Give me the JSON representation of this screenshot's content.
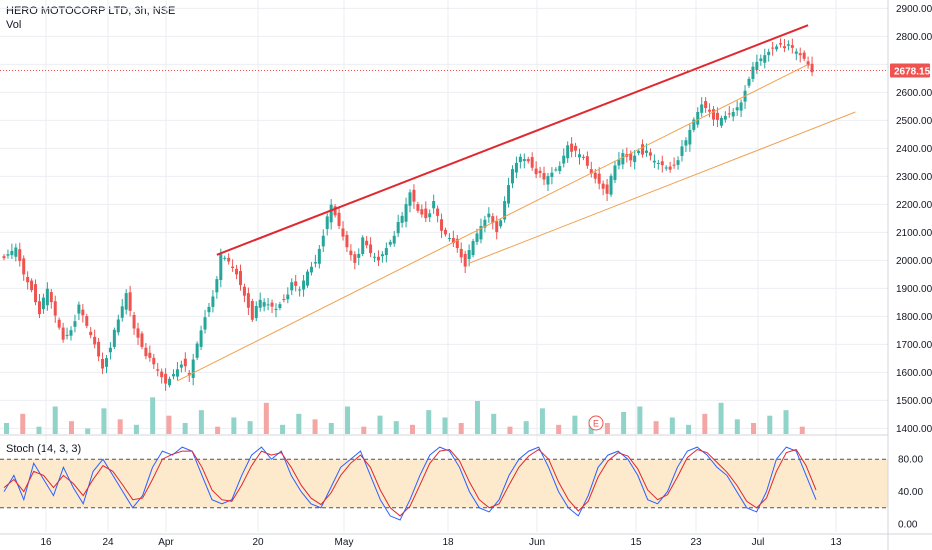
{
  "header": {
    "symbol_line": "HERO MOTOCORP LTD, 3h, NSE",
    "volume_label": "Vol",
    "stoch_label": "Stoch (14, 3, 3)"
  },
  "colors": {
    "up": "#26a69a",
    "down": "#ef5350",
    "vol_up": "#8fd3c9",
    "vol_down": "#f4a6a4",
    "channel_top": "#e0282f",
    "channel_lines": "#f0a050",
    "stoch_k": "#2962ff",
    "stoch_d": "#e0282f",
    "stoch_band": "#fde9cc",
    "price_tag": "#ef5350",
    "grid": "#eceef2"
  },
  "last_price": "2678.15",
  "earnings_marker": "E",
  "chart_data": [
    {
      "type": "candlestick",
      "title": "HERO MOTOCORP LTD, 3h, NSE",
      "y_axis_ticks": [
        "2900.00",
        "2800.00",
        "2700.00",
        "2600.00",
        "2500.00",
        "2400.00",
        "2300.00",
        "2200.00",
        "2100.00",
        "2000.00",
        "1900.00",
        "1800.00",
        "1700.00",
        "1600.00",
        "1500.00",
        "1400.00"
      ],
      "x_axis_ticks": [
        "16",
        "24",
        "Apr",
        "20",
        "May",
        "18",
        "Jun",
        "15",
        "23",
        "Jul",
        "13"
      ],
      "last_price": 2678.15,
      "price_range": [
        1380,
        2930
      ],
      "grid": true,
      "series": [
        {
          "name": "price",
          "close_path": [
            [
              0,
              2030
            ],
            [
              2,
              2010
            ],
            [
              4,
              2040
            ],
            [
              6,
              1950
            ],
            [
              8,
              1900
            ],
            [
              10,
              1820
            ],
            [
              12,
              1890
            ],
            [
              14,
              1800
            ],
            [
              16,
              1720
            ],
            [
              18,
              1760
            ],
            [
              20,
              1830
            ],
            [
              22,
              1760
            ],
            [
              24,
              1700
            ],
            [
              26,
              1620
            ],
            [
              28,
              1700
            ],
            [
              30,
              1780
            ],
            [
              32,
              1880
            ],
            [
              34,
              1760
            ],
            [
              36,
              1700
            ],
            [
              38,
              1640
            ],
            [
              40,
              1600
            ],
            [
              42,
              1560
            ],
            [
              44,
              1600
            ],
            [
              46,
              1640
            ],
            [
              48,
              1580
            ],
            [
              50,
              1700
            ],
            [
              52,
              1800
            ],
            [
              54,
              1880
            ],
            [
              56,
              2010
            ],
            [
              58,
              1990
            ],
            [
              60,
              1950
            ],
            [
              62,
              1880
            ],
            [
              64,
              1800
            ],
            [
              66,
              1850
            ],
            [
              68,
              1840
            ],
            [
              70,
              1830
            ],
            [
              72,
              1870
            ],
            [
              74,
              1910
            ],
            [
              76,
              1890
            ],
            [
              78,
              1960
            ],
            [
              80,
              2000
            ],
            [
              82,
              2100
            ],
            [
              84,
              2190
            ],
            [
              86,
              2120
            ],
            [
              88,
              2050
            ],
            [
              90,
              2000
            ],
            [
              92,
              2070
            ],
            [
              94,
              2020
            ],
            [
              96,
              2000
            ],
            [
              98,
              2050
            ],
            [
              100,
              2100
            ],
            [
              102,
              2150
            ],
            [
              104,
              2240
            ],
            [
              106,
              2180
            ],
            [
              108,
              2160
            ],
            [
              110,
              2200
            ],
            [
              112,
              2100
            ],
            [
              114,
              2080
            ],
            [
              116,
              2050
            ],
            [
              118,
              1990
            ],
            [
              120,
              2060
            ],
            [
              122,
              2120
            ],
            [
              124,
              2170
            ],
            [
              126,
              2110
            ],
            [
              128,
              2200
            ],
            [
              130,
              2320
            ],
            [
              132,
              2370
            ],
            [
              134,
              2360
            ],
            [
              136,
              2320
            ],
            [
              138,
              2280
            ],
            [
              140,
              2310
            ],
            [
              142,
              2340
            ],
            [
              144,
              2420
            ],
            [
              146,
              2380
            ],
            [
              148,
              2360
            ],
            [
              150,
              2310
            ],
            [
              152,
              2280
            ],
            [
              154,
              2250
            ],
            [
              156,
              2330
            ],
            [
              158,
              2380
            ],
            [
              160,
              2360
            ],
            [
              162,
              2400
            ],
            [
              164,
              2380
            ],
            [
              166,
              2350
            ],
            [
              168,
              2340
            ],
            [
              170,
              2330
            ],
            [
              172,
              2370
            ],
            [
              174,
              2420
            ],
            [
              176,
              2500
            ],
            [
              178,
              2560
            ],
            [
              180,
              2540
            ],
            [
              182,
              2490
            ],
            [
              184,
              2510
            ],
            [
              186,
              2530
            ],
            [
              188,
              2570
            ],
            [
              190,
              2660
            ],
            [
              192,
              2700
            ],
            [
              194,
              2730
            ],
            [
              196,
              2760
            ],
            [
              198,
              2780
            ],
            [
              200,
              2760
            ],
            [
              202,
              2740
            ],
            [
              204,
              2720
            ],
            [
              206,
              2678.15
            ]
          ]
        }
      ],
      "channel_lines": [
        {
          "name": "upper",
          "points": [
            [
              54,
              2020
            ],
            [
              204,
              2840
            ]
          ]
        },
        {
          "name": "middle",
          "points": [
            [
              44,
              1570
            ],
            [
              204,
              2700
            ]
          ]
        },
        {
          "name": "lower",
          "points": [
            [
              118,
              1990
            ],
            [
              216,
              2530
            ]
          ]
        }
      ]
    },
    {
      "type": "bar",
      "title": "Vol",
      "values": [
        12,
        22,
        8,
        30,
        14,
        6,
        28,
        16,
        10,
        40,
        20,
        12,
        26,
        8,
        18,
        14,
        34,
        10,
        22,
        16,
        12,
        30,
        8,
        20,
        14,
        10,
        26,
        18,
        12,
        36,
        22,
        8,
        14,
        28,
        10,
        20,
        16,
        12,
        24,
        30,
        14,
        18,
        10,
        22,
        34,
        16,
        12,
        20,
        26,
        8
      ],
      "ylim": [
        0,
        120
      ]
    },
    {
      "type": "line",
      "title": "Stoch (14, 3, 3)",
      "y_axis_ticks": [
        "80.00",
        "40.00",
        "0.00"
      ],
      "ylim": [
        0,
        100
      ],
      "bands": [
        20,
        80
      ],
      "series": [
        {
          "name": "%K",
          "values": [
            40,
            60,
            30,
            75,
            55,
            35,
            70,
            45,
            25,
            65,
            80,
            60,
            40,
            20,
            35,
            70,
            90,
            85,
            95,
            90,
            60,
            30,
            25,
            30,
            60,
            85,
            95,
            80,
            90,
            60,
            40,
            25,
            20,
            45,
            70,
            80,
            90,
            60,
            30,
            10,
            5,
            30,
            60,
            85,
            95,
            90,
            70,
            40,
            20,
            15,
            30,
            60,
            80,
            90,
            95,
            70,
            40,
            20,
            10,
            35,
            70,
            85,
            90,
            80,
            60,
            30,
            25,
            40,
            70,
            90,
            95,
            85,
            70,
            60,
            40,
            20,
            15,
            40,
            80,
            95,
            90,
            60,
            30
          ]
        },
        {
          "name": "%D",
          "values": [
            45,
            55,
            40,
            65,
            60,
            45,
            60,
            50,
            35,
            55,
            72,
            65,
            48,
            30,
            32,
            55,
            80,
            86,
            90,
            90,
            70,
            42,
            30,
            28,
            48,
            72,
            90,
            85,
            88,
            70,
            48,
            32,
            24,
            38,
            60,
            75,
            85,
            70,
            42,
            20,
            10,
            22,
            48,
            75,
            90,
            92,
            78,
            52,
            30,
            20,
            25,
            48,
            70,
            84,
            92,
            80,
            52,
            30,
            16,
            28,
            58,
            78,
            88,
            84,
            68,
            42,
            30,
            36,
            58,
            82,
            92,
            88,
            76,
            64,
            48,
            28,
            20,
            32,
            65,
            88,
            92,
            72,
            42
          ]
        }
      ]
    }
  ]
}
